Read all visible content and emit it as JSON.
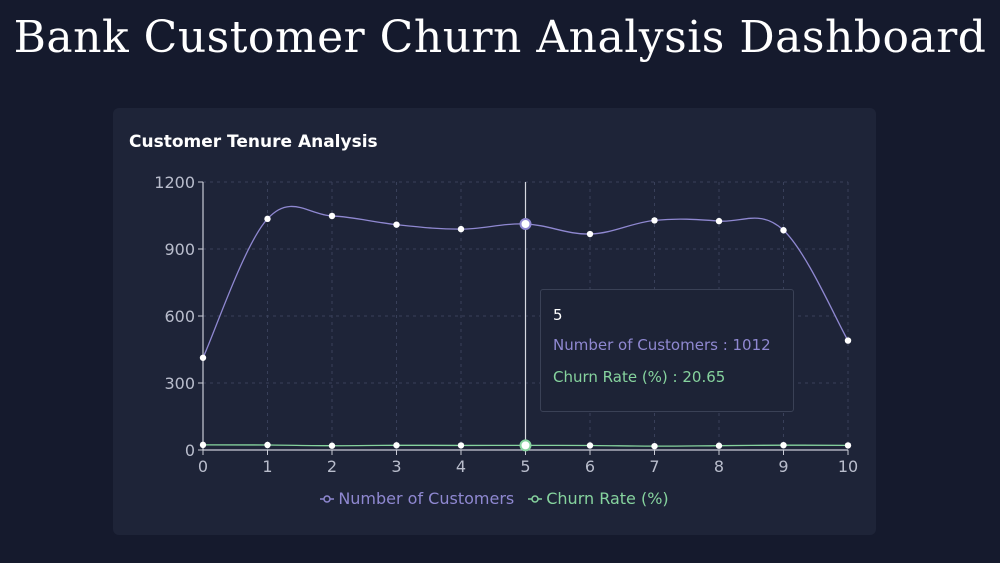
{
  "page": {
    "title": "Bank Customer Churn Analysis Dashboard"
  },
  "card": {
    "title": "Customer Tenure Analysis"
  },
  "colors": {
    "customers": "#8f88d1",
    "churn": "#86d39e",
    "point_fill": "#ffffff",
    "grid": "#39405a",
    "axis": "#c9cbd6"
  },
  "chart_data": {
    "type": "line",
    "x": [
      0,
      1,
      2,
      3,
      4,
      5,
      6,
      7,
      8,
      9,
      10
    ],
    "xlim": [
      0,
      10
    ],
    "ylim": [
      0,
      1200
    ],
    "yticks": [
      0,
      300,
      600,
      900,
      1200
    ],
    "grid": true,
    "legend_position": "bottom",
    "series": [
      {
        "name": "Number of Customers",
        "color": "#8f88d1",
        "values": [
          413,
          1035,
          1048,
          1009,
          989,
          1012,
          967,
          1028,
          1025,
          984,
          490
        ]
      },
      {
        "name": "Churn Rate (%)",
        "color": "#86d39e",
        "values": [
          23,
          22.4,
          19.2,
          21.1,
          20.5,
          20.65,
          20.3,
          17.2,
          19.2,
          21.6,
          20.6
        ]
      }
    ]
  },
  "tooltip": {
    "title": "5",
    "customers_text": "Number of Customers : 1012",
    "churn_text": "Churn Rate (%) : 20.65"
  }
}
